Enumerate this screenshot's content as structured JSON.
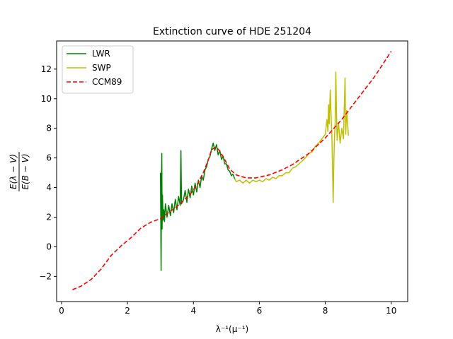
{
  "chart_data": {
    "type": "line",
    "title": "Extinction curve of HDE 251204",
    "xlabel": "λ⁻¹(μ⁻¹)",
    "ylabel_numerator": "E(λ − V)",
    "ylabel_denominator": "E(B − V)",
    "xlim": [
      -0.15,
      10.5
    ],
    "ylim": [
      -3.7,
      13.9
    ],
    "xticks": [
      0,
      2,
      4,
      6,
      8,
      10
    ],
    "yticks": [
      -2,
      0,
      2,
      4,
      6,
      8,
      10,
      12
    ],
    "legend_position": "top-left",
    "grid": false,
    "series": [
      {
        "name": "LWR",
        "color": "#008000",
        "style": "solid",
        "points": [
          [
            3.0,
            5.0
          ],
          [
            3.01,
            1.5
          ],
          [
            3.02,
            -1.6
          ],
          [
            3.03,
            4.2
          ],
          [
            3.04,
            6.3
          ],
          [
            3.05,
            1.2
          ],
          [
            3.06,
            3.5
          ],
          [
            3.08,
            1.8
          ],
          [
            3.1,
            2.5
          ],
          [
            3.12,
            1.7
          ],
          [
            3.15,
            2.9
          ],
          [
            3.2,
            2.0
          ],
          [
            3.25,
            2.8
          ],
          [
            3.3,
            2.1
          ],
          [
            3.35,
            2.9
          ],
          [
            3.4,
            2.3
          ],
          [
            3.45,
            3.2
          ],
          [
            3.5,
            2.5
          ],
          [
            3.55,
            3.4
          ],
          [
            3.6,
            2.8
          ],
          [
            3.62,
            6.5
          ],
          [
            3.64,
            2.9
          ],
          [
            3.7,
            3.2
          ],
          [
            3.75,
            3.8
          ],
          [
            3.8,
            3.0
          ],
          [
            3.85,
            3.9
          ],
          [
            3.9,
            3.3
          ],
          [
            3.95,
            4.1
          ],
          [
            4.0,
            3.5
          ],
          [
            4.05,
            4.3
          ],
          [
            4.1,
            3.7
          ],
          [
            4.15,
            4.5
          ],
          [
            4.2,
            4.0
          ],
          [
            4.25,
            4.8
          ],
          [
            4.3,
            4.5
          ],
          [
            4.35,
            5.2
          ],
          [
            4.4,
            5.4
          ],
          [
            4.45,
            5.9
          ],
          [
            4.5,
            6.1
          ],
          [
            4.55,
            6.6
          ],
          [
            4.6,
            7.0
          ],
          [
            4.65,
            6.5
          ],
          [
            4.7,
            6.9
          ],
          [
            4.75,
            6.2
          ],
          [
            4.8,
            6.5
          ],
          [
            4.85,
            5.9
          ],
          [
            4.9,
            6.1
          ],
          [
            4.95,
            5.6
          ],
          [
            5.0,
            5.6
          ],
          [
            5.05,
            5.2
          ],
          [
            5.1,
            5.1
          ],
          [
            5.15,
            4.8
          ],
          [
            5.2,
            4.9
          ],
          [
            5.25,
            4.6
          ]
        ]
      },
      {
        "name": "SWP",
        "color": "#bfbf00",
        "style": "solid",
        "points": [
          [
            5.25,
            4.6
          ],
          [
            5.3,
            4.4
          ],
          [
            5.4,
            4.5
          ],
          [
            5.5,
            4.3
          ],
          [
            5.6,
            4.5
          ],
          [
            5.7,
            4.3
          ],
          [
            5.8,
            4.5
          ],
          [
            5.9,
            4.4
          ],
          [
            6.0,
            4.5
          ],
          [
            6.1,
            4.4
          ],
          [
            6.2,
            4.6
          ],
          [
            6.3,
            4.5
          ],
          [
            6.4,
            4.7
          ],
          [
            6.5,
            4.6
          ],
          [
            6.6,
            4.8
          ],
          [
            6.7,
            4.8
          ],
          [
            6.8,
            5.0
          ],
          [
            6.9,
            5.0
          ],
          [
            7.0,
            5.3
          ],
          [
            7.1,
            5.4
          ],
          [
            7.2,
            5.6
          ],
          [
            7.3,
            5.8
          ],
          [
            7.4,
            6.0
          ],
          [
            7.5,
            6.3
          ],
          [
            7.6,
            6.4
          ],
          [
            7.7,
            6.8
          ],
          [
            7.8,
            7.0
          ],
          [
            7.9,
            7.3
          ],
          [
            8.0,
            7.6
          ],
          [
            8.05,
            8.6
          ],
          [
            8.08,
            7.8
          ],
          [
            8.1,
            9.6
          ],
          [
            8.12,
            8.3
          ],
          [
            8.15,
            10.6
          ],
          [
            8.18,
            8.5
          ],
          [
            8.2,
            7.5
          ],
          [
            8.22,
            5.3
          ],
          [
            8.24,
            3.0
          ],
          [
            8.26,
            5.8
          ],
          [
            8.28,
            7.4
          ],
          [
            8.3,
            8.3
          ],
          [
            8.32,
            11.8
          ],
          [
            8.34,
            9.0
          ],
          [
            8.36,
            7.2
          ],
          [
            8.4,
            8.4
          ],
          [
            8.45,
            7.0
          ],
          [
            8.5,
            8.0
          ],
          [
            8.55,
            7.3
          ],
          [
            8.6,
            11.4
          ],
          [
            8.62,
            7.6
          ],
          [
            8.65,
            9.2
          ],
          [
            8.7,
            7.5
          ]
        ]
      },
      {
        "name": "CCM89",
        "color": "#ff0000",
        "style": "dashed",
        "points": [
          [
            0.33,
            -2.9
          ],
          [
            0.6,
            -2.65
          ],
          [
            0.9,
            -2.2
          ],
          [
            1.2,
            -1.5
          ],
          [
            1.5,
            -0.6
          ],
          [
            1.8,
            0.05
          ],
          [
            2.1,
            0.6
          ],
          [
            2.4,
            1.25
          ],
          [
            2.7,
            1.65
          ],
          [
            3.0,
            1.9
          ],
          [
            3.3,
            2.4
          ],
          [
            3.6,
            2.9
          ],
          [
            3.9,
            3.55
          ],
          [
            4.1,
            4.15
          ],
          [
            4.3,
            5.0
          ],
          [
            4.45,
            5.85
          ],
          [
            4.55,
            6.55
          ],
          [
            4.65,
            6.7
          ],
          [
            4.75,
            6.6
          ],
          [
            4.9,
            6.1
          ],
          [
            5.1,
            5.25
          ],
          [
            5.3,
            4.85
          ],
          [
            5.6,
            4.65
          ],
          [
            5.9,
            4.65
          ],
          [
            6.3,
            4.85
          ],
          [
            6.7,
            5.2
          ],
          [
            7.0,
            5.55
          ],
          [
            7.5,
            6.3
          ],
          [
            8.0,
            7.35
          ],
          [
            8.5,
            8.6
          ],
          [
            9.0,
            10.05
          ],
          [
            9.5,
            11.5
          ],
          [
            10.0,
            13.2
          ]
        ]
      }
    ]
  }
}
